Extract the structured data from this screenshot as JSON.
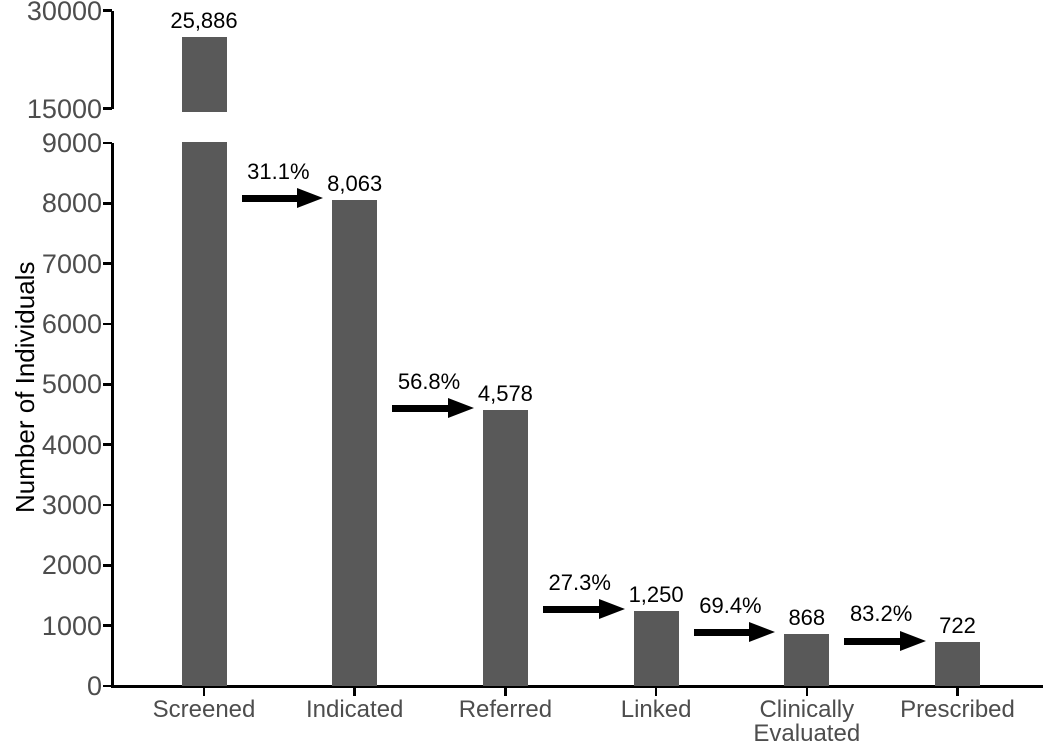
{
  "chart_data": {
    "type": "bar",
    "title": "",
    "xlabel": "",
    "ylabel": "Number of Individuals",
    "categories": [
      "Screened",
      "Indicated",
      "Referred",
      "Linked",
      "Clinically Evaluated",
      "Prescribed"
    ],
    "values": [
      25886,
      8063,
      4578,
      1250,
      868,
      722
    ],
    "value_labels": [
      "25,886",
      "8,063",
      "4,578",
      "1,250",
      "868",
      "722"
    ],
    "transition_percents": [
      "31.1%",
      "56.8%",
      "27.3%",
      "69.4%",
      "83.2%"
    ],
    "y_axis": {
      "broken": true,
      "lower_range": [
        0,
        9000
      ],
      "upper_range": [
        15000,
        30000
      ],
      "lower_ticks": [
        0,
        1000,
        2000,
        3000,
        4000,
        5000,
        6000,
        7000,
        8000,
        9000
      ],
      "upper_ticks": [
        15000,
        30000
      ]
    },
    "grid": false,
    "legend_position": "none",
    "bar_color": "#595959",
    "axis_text_color": "#4d4d4d",
    "annotation_color": "#000000",
    "axis_line_color": "#000000"
  }
}
